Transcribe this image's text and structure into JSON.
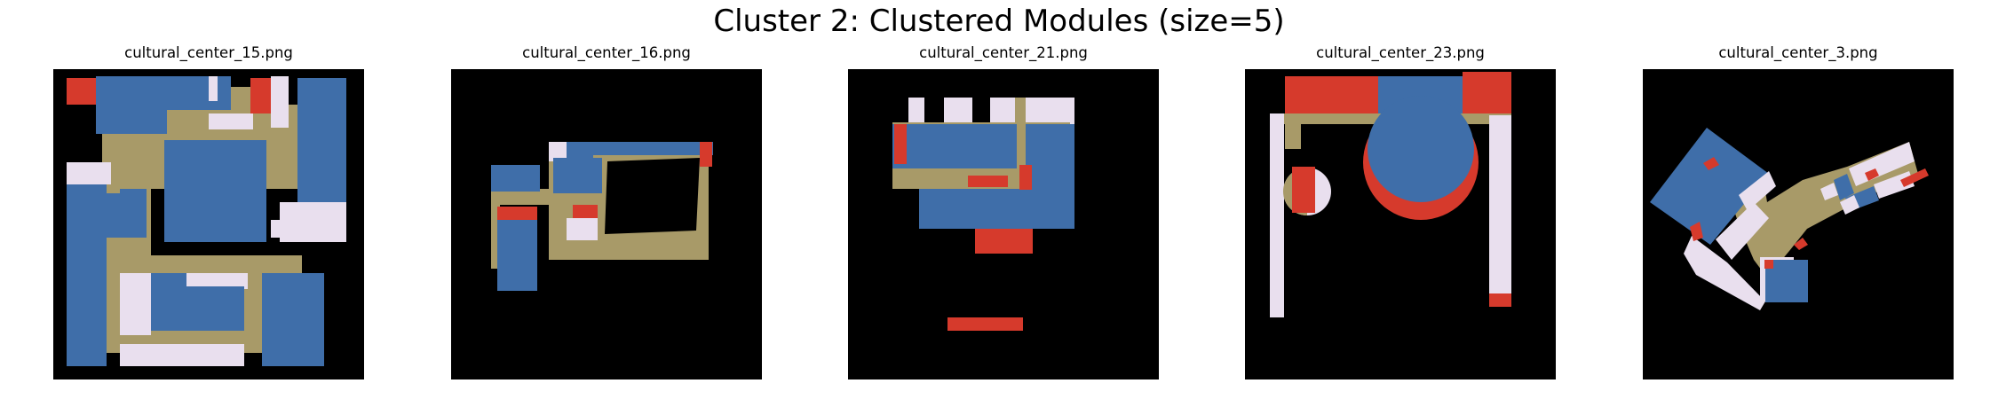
{
  "figure": {
    "title": "Cluster 2: Clustered Modules (size=5)"
  },
  "colors": {
    "background": "#000000",
    "corridor": "#a89a68",
    "room_blue": "#3f6ea9",
    "room_red": "#d63a2c",
    "room_lavender": "#e9dfee"
  },
  "panels": [
    {
      "title": "cultural_center_15.png"
    },
    {
      "title": "cultural_center_16.png"
    },
    {
      "title": "cultural_center_21.png"
    },
    {
      "title": "cultural_center_23.png"
    },
    {
      "title": "cultural_center_3.png"
    }
  ]
}
